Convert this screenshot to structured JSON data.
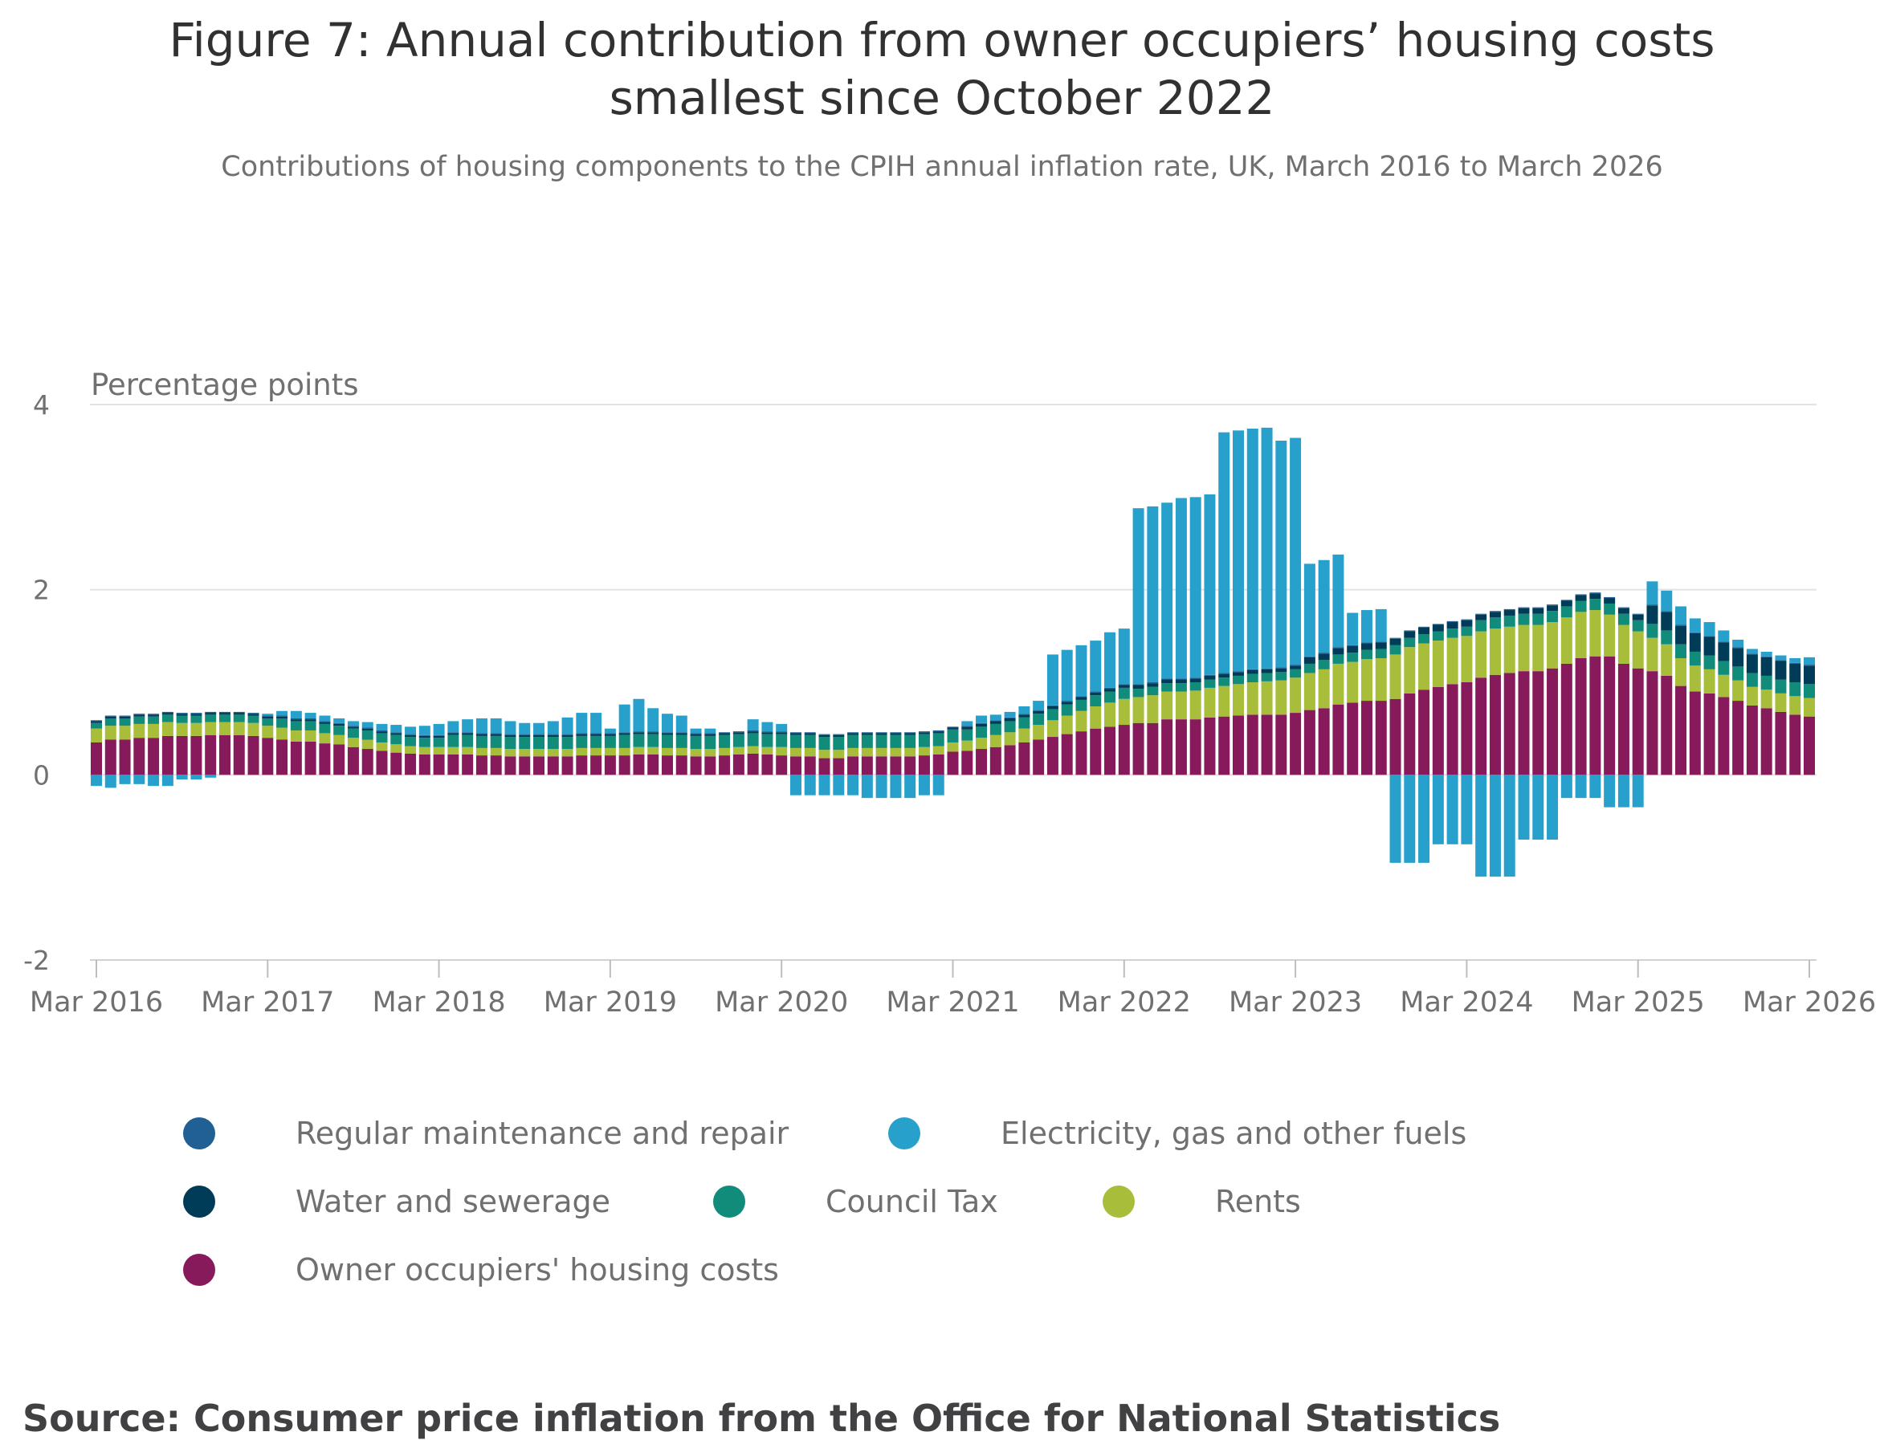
{
  "title": "Figure 7: Annual contribution from owner occupiers’ housing costs smallest since October 2022",
  "title_line1": "Figure 7: Annual contribution from owner occupiers’ housing costs",
  "title_line2": "smallest since October 2022",
  "subtitle": "Contributions of housing components to the CPIH annual inflation rate, UK, March 2016 to March 2026",
  "source": "Source: Consumer price inflation from the Office for National Statistics",
  "chart_data": {
    "type": "bar",
    "stacked": true,
    "title": "Figure 7: Annual contribution from owner occupiers’ housing costs smallest since October 2022",
    "subtitle": "Contributions of housing components to the CPIH annual inflation rate, UK, March 2016 to March 2026",
    "ylabel": "Percentage points",
    "xlabel": "",
    "ylim": [
      -2,
      4
    ],
    "yticks": [
      "4",
      "2",
      "0",
      "-2"
    ],
    "ytick_values": [
      4,
      2,
      0,
      -2
    ],
    "x_start": "Mar 2016",
    "x_end": "Mar 2026",
    "frequency": "monthly",
    "xticks": [
      "Mar 2016",
      "Mar 2017",
      "Mar 2018",
      "Mar 2019",
      "Mar 2020",
      "Mar 2021",
      "Mar 2022",
      "Mar 2023",
      "Mar 2024",
      "Mar 2025",
      "Mar 2026"
    ],
    "grid": true,
    "legend_position": "bottom",
    "series": [
      {
        "name": "Owner occupiers' housing costs",
        "color": "#871a5b",
        "values": [
          0.35,
          0.38,
          0.38,
          0.4,
          0.4,
          0.42,
          0.42,
          0.42,
          0.43,
          0.43,
          0.43,
          0.42,
          0.4,
          0.38,
          0.36,
          0.36,
          0.34,
          0.33,
          0.3,
          0.28,
          0.26,
          0.24,
          0.23,
          0.22,
          0.22,
          0.22,
          0.22,
          0.21,
          0.21,
          0.2,
          0.2,
          0.2,
          0.2,
          0.2,
          0.21,
          0.21,
          0.21,
          0.21,
          0.22,
          0.22,
          0.21,
          0.21,
          0.2,
          0.2,
          0.21,
          0.22,
          0.23,
          0.22,
          0.21,
          0.2,
          0.2,
          0.18,
          0.18,
          0.2,
          0.2,
          0.2,
          0.2,
          0.2,
          0.21,
          0.22,
          0.25,
          0.26,
          0.28,
          0.3,
          0.32,
          0.35,
          0.38,
          0.41,
          0.44,
          0.47,
          0.5,
          0.52,
          0.54,
          0.56,
          0.56,
          0.6,
          0.6,
          0.6,
          0.62,
          0.63,
          0.64,
          0.65,
          0.65,
          0.65,
          0.67,
          0.7,
          0.72,
          0.76,
          0.78,
          0.8,
          0.8,
          0.82,
          0.88,
          0.92,
          0.95,
          0.98,
          1.0,
          1.05,
          1.08,
          1.1,
          1.12,
          1.12,
          1.15,
          1.2,
          1.26,
          1.28,
          1.28,
          1.2,
          1.15,
          1.12,
          1.07,
          0.96,
          0.9,
          0.88,
          0.84,
          0.8,
          0.75,
          0.72,
          0.68,
          0.65,
          0.63
        ]
      },
      {
        "name": "Rents",
        "color": "#a8bd3a",
        "values": [
          0.15,
          0.15,
          0.15,
          0.15,
          0.15,
          0.15,
          0.14,
          0.14,
          0.14,
          0.14,
          0.14,
          0.14,
          0.13,
          0.13,
          0.12,
          0.12,
          0.11,
          0.1,
          0.1,
          0.1,
          0.09,
          0.09,
          0.08,
          0.08,
          0.08,
          0.08,
          0.08,
          0.08,
          0.08,
          0.08,
          0.08,
          0.08,
          0.08,
          0.08,
          0.08,
          0.08,
          0.08,
          0.08,
          0.08,
          0.08,
          0.08,
          0.08,
          0.08,
          0.08,
          0.08,
          0.08,
          0.08,
          0.08,
          0.09,
          0.09,
          0.09,
          0.09,
          0.09,
          0.09,
          0.09,
          0.09,
          0.09,
          0.09,
          0.09,
          0.09,
          0.1,
          0.11,
          0.12,
          0.13,
          0.14,
          0.15,
          0.16,
          0.18,
          0.2,
          0.22,
          0.24,
          0.26,
          0.28,
          0.28,
          0.3,
          0.3,
          0.3,
          0.31,
          0.32,
          0.33,
          0.34,
          0.35,
          0.36,
          0.37,
          0.38,
          0.4,
          0.42,
          0.44,
          0.44,
          0.45,
          0.46,
          0.48,
          0.5,
          0.5,
          0.5,
          0.5,
          0.5,
          0.5,
          0.5,
          0.5,
          0.5,
          0.5,
          0.5,
          0.5,
          0.5,
          0.5,
          0.45,
          0.42,
          0.4,
          0.36,
          0.34,
          0.3,
          0.28,
          0.26,
          0.24,
          0.22,
          0.2,
          0.2,
          0.2,
          0.2,
          0.2
        ]
      },
      {
        "name": "Council Tax",
        "color": "#118c7b",
        "values": [
          0.06,
          0.08,
          0.08,
          0.08,
          0.08,
          0.08,
          0.08,
          0.08,
          0.08,
          0.08,
          0.08,
          0.08,
          0.08,
          0.1,
          0.1,
          0.1,
          0.1,
          0.1,
          0.1,
          0.1,
          0.1,
          0.1,
          0.1,
          0.1,
          0.1,
          0.13,
          0.13,
          0.13,
          0.13,
          0.13,
          0.13,
          0.13,
          0.13,
          0.13,
          0.13,
          0.13,
          0.13,
          0.14,
          0.14,
          0.14,
          0.14,
          0.14,
          0.14,
          0.14,
          0.14,
          0.14,
          0.14,
          0.14,
          0.14,
          0.14,
          0.14,
          0.14,
          0.14,
          0.14,
          0.14,
          0.14,
          0.14,
          0.14,
          0.14,
          0.14,
          0.14,
          0.12,
          0.12,
          0.12,
          0.12,
          0.12,
          0.12,
          0.12,
          0.12,
          0.12,
          0.12,
          0.12,
          0.12,
          0.09,
          0.09,
          0.09,
          0.09,
          0.09,
          0.09,
          0.09,
          0.09,
          0.09,
          0.09,
          0.09,
          0.09,
          0.1,
          0.1,
          0.1,
          0.1,
          0.1,
          0.1,
          0.1,
          0.1,
          0.1,
          0.1,
          0.1,
          0.1,
          0.12,
          0.12,
          0.12,
          0.12,
          0.12,
          0.12,
          0.12,
          0.12,
          0.12,
          0.12,
          0.12,
          0.12,
          0.15,
          0.15,
          0.15,
          0.15,
          0.15,
          0.15,
          0.15,
          0.15,
          0.15,
          0.15,
          0.15,
          0.15
        ]
      },
      {
        "name": "Water and sewerage",
        "color": "#003c57",
        "values": [
          0.02,
          0.02,
          0.02,
          0.02,
          0.02,
          0.02,
          0.02,
          0.02,
          0.02,
          0.02,
          0.02,
          0.02,
          0.02,
          0.02,
          0.02,
          0.02,
          0.02,
          0.02,
          0.02,
          0.02,
          0.02,
          0.02,
          0.02,
          0.02,
          0.02,
          0.02,
          0.02,
          0.02,
          0.02,
          0.02,
          0.02,
          0.02,
          0.02,
          0.02,
          0.02,
          0.02,
          0.02,
          0.02,
          0.02,
          0.02,
          0.02,
          0.02,
          0.02,
          0.02,
          0.02,
          0.02,
          0.02,
          0.02,
          0.02,
          0.02,
          0.02,
          0.02,
          0.02,
          0.02,
          0.02,
          0.02,
          0.02,
          0.02,
          0.02,
          0.02,
          0.02,
          0.03,
          0.03,
          0.03,
          0.03,
          0.03,
          0.03,
          0.03,
          0.03,
          0.03,
          0.03,
          0.03,
          0.03,
          0.04,
          0.04,
          0.04,
          0.04,
          0.04,
          0.04,
          0.04,
          0.04,
          0.04,
          0.04,
          0.04,
          0.04,
          0.07,
          0.07,
          0.07,
          0.07,
          0.07,
          0.07,
          0.07,
          0.07,
          0.07,
          0.07,
          0.07,
          0.07,
          0.06,
          0.06,
          0.06,
          0.06,
          0.06,
          0.06,
          0.06,
          0.06,
          0.06,
          0.06,
          0.06,
          0.06,
          0.2,
          0.2,
          0.2,
          0.2,
          0.2,
          0.2,
          0.2,
          0.2,
          0.2,
          0.2,
          0.2,
          0.2
        ]
      },
      {
        "name": "Regular maintenance and repair",
        "color": "#206095",
        "values": [
          0.01,
          0.01,
          0.01,
          0.01,
          0.01,
          0.01,
          0.01,
          0.01,
          0.01,
          0.01,
          0.01,
          0.01,
          0.01,
          0.01,
          0.01,
          0.01,
          0.01,
          0.01,
          0.01,
          0.01,
          0.01,
          0.01,
          0.01,
          0.01,
          0.01,
          0.01,
          0.01,
          0.01,
          0.01,
          0.01,
          0.01,
          0.01,
          0.01,
          0.01,
          0.01,
          0.01,
          0.01,
          0.01,
          0.01,
          0.01,
          0.01,
          0.01,
          0.01,
          0.01,
          0.01,
          0.01,
          0.01,
          0.01,
          0.01,
          0.01,
          0.01,
          0.01,
          0.01,
          0.01,
          0.01,
          0.01,
          0.01,
          0.01,
          0.01,
          0.01,
          0.01,
          0.01,
          0.01,
          0.01,
          0.01,
          0.01,
          0.01,
          0.01,
          0.01,
          0.01,
          0.01,
          0.01,
          0.01,
          0.01,
          0.01,
          0.01,
          0.01,
          0.01,
          0.01,
          0.01,
          0.01,
          0.01,
          0.01,
          0.01,
          0.01,
          0.01,
          0.01,
          0.01,
          0.01,
          0.01,
          0.01,
          0.01,
          0.01,
          0.01,
          0.01,
          0.01,
          0.01,
          0.01,
          0.01,
          0.01,
          0.01,
          0.01,
          0.01,
          0.01,
          0.01,
          0.01,
          0.01,
          0.01,
          0.01,
          0.01,
          0.01,
          0.01,
          0.01,
          0.01,
          0.01,
          0.01,
          0.01,
          0.01,
          0.01,
          0.01,
          0.01
        ]
      },
      {
        "name": "Electricity, gas and other fuels",
        "color": "#27a0cc",
        "values": [
          -0.12,
          -0.14,
          -0.1,
          -0.1,
          -0.12,
          -0.12,
          -0.05,
          -0.05,
          -0.03,
          0,
          0,
          0,
          0.02,
          0.05,
          0.08,
          0.06,
          0.06,
          0.05,
          0.05,
          0.06,
          0.07,
          0.08,
          0.08,
          0.1,
          0.12,
          0.12,
          0.14,
          0.16,
          0.16,
          0.14,
          0.12,
          0.12,
          0.14,
          0.18,
          0.22,
          0.22,
          0.05,
          0.3,
          0.35,
          0.25,
          0.2,
          0.18,
          0.05,
          0.05,
          0,
          0,
          0.12,
          0.1,
          0.08,
          -0.22,
          -0.22,
          -0.22,
          -0.22,
          -0.22,
          -0.25,
          -0.25,
          -0.25,
          -0.25,
          -0.22,
          -0.22,
          0,
          0.05,
          0.08,
          0.06,
          0.06,
          0.08,
          0.1,
          0.55,
          0.55,
          0.55,
          0.55,
          0.6,
          0.6,
          1.9,
          1.9,
          1.9,
          1.95,
          1.95,
          1.95,
          2.6,
          2.6,
          2.6,
          2.6,
          2.45,
          2.45,
          1.0,
          1.0,
          1.0,
          0.35,
          0.35,
          0.35,
          -0.95,
          -0.95,
          -0.95,
          -0.75,
          -0.75,
          -0.75,
          -1.1,
          -1.1,
          -1.1,
          -0.7,
          -0.7,
          -0.7,
          -0.25,
          -0.25,
          -0.25,
          -0.35,
          -0.35,
          -0.35,
          0.25,
          0.22,
          0.2,
          0.15,
          0.15,
          0.12,
          0.08,
          0.05,
          0.05,
          0.05,
          0.05,
          0.08
        ]
      }
    ]
  },
  "legend": [
    {
      "label": "Regular maintenance and repair",
      "color": "#206095"
    },
    {
      "label": "Electricity, gas and other fuels",
      "color": "#27a0cc"
    },
    {
      "label": "Water and sewerage",
      "color": "#003c57"
    },
    {
      "label": "Council Tax",
      "color": "#118c7b"
    },
    {
      "label": "Rents",
      "color": "#a8bd3a"
    },
    {
      "label": "Owner occupiers' housing costs",
      "color": "#871a5b"
    }
  ]
}
